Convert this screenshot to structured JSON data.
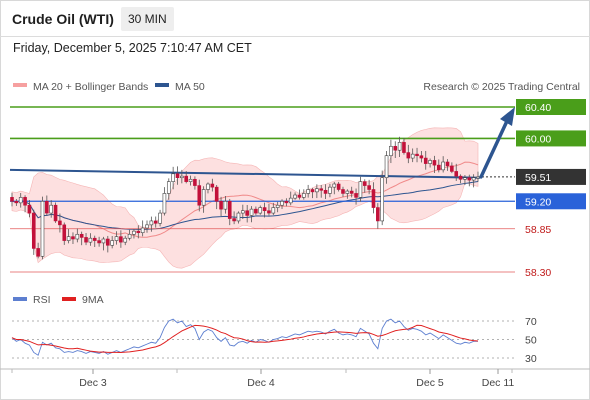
{
  "header": {
    "title": "Crude Oil (WTI)",
    "timeframe": "30 MIN",
    "timestamp": "Friday, December 5, 2025 7:10:47 AM CET"
  },
  "legend": {
    "ma20_bb": "MA 20 + Bollinger Bands",
    "ma50": "MA 50",
    "rsi": "RSI",
    "ma9": "9MA"
  },
  "credit": "Research © 2025 Trading Central",
  "colors": {
    "green_level": "#4a9e1a",
    "blue_level": "#2a62d9",
    "red_level": "#e35a5a",
    "trendline": "#2d5590",
    "current_price": "#333333",
    "bollinger_fill": "#fcd6d6",
    "ma20": "#f08a8a",
    "ma50": "#2d5590",
    "rsi": "#5d7fd0",
    "rsi_ma9": "#e02020",
    "candle_up": "#ffffff",
    "candle_down": "#c2113a"
  },
  "chart_data": {
    "type": "candlestick",
    "instrument": "Crude Oil (WTI)",
    "interval": "30 MIN",
    "price_ylim": [
      58.08,
      60.68
    ],
    "x_ticks": [
      "Dec 3",
      "Dec 4",
      "Dec 5",
      "Dec 11"
    ],
    "grid": false,
    "levels": [
      {
        "label": "60.40",
        "value": 60.4,
        "kind": "resistance",
        "color": "green"
      },
      {
        "label": "60.00",
        "value": 60.0,
        "kind": "resistance",
        "color": "green"
      },
      {
        "label": "59.51",
        "value": 59.51,
        "kind": "current",
        "color": "dark"
      },
      {
        "label": "59.20",
        "value": 59.2,
        "kind": "pivot",
        "color": "blue"
      },
      {
        "label": "58.85",
        "value": 58.85,
        "kind": "support",
        "color": "red"
      },
      {
        "label": "58.30",
        "value": 58.3,
        "kind": "support",
        "color": "red"
      }
    ],
    "trendline": {
      "from": [
        "Dec 2 start",
        59.6
      ],
      "to": [
        "Dec 5 09:00",
        59.5
      ]
    },
    "projection_arrow": {
      "from": 59.51,
      "to": 60.4
    },
    "candles_close": [
      59.2,
      59.18,
      59.25,
      59.15,
      59.05,
      58.6,
      58.5,
      59.2,
      59.05,
      59.15,
      58.95,
      58.9,
      58.7,
      58.75,
      58.72,
      58.78,
      58.74,
      58.68,
      58.73,
      58.7,
      58.67,
      58.72,
      58.64,
      58.7,
      58.75,
      58.68,
      58.73,
      58.78,
      58.82,
      58.8,
      58.86,
      58.9,
      58.95,
      58.92,
      59.05,
      59.3,
      59.45,
      59.55,
      59.5,
      59.52,
      59.45,
      59.48,
      59.4,
      59.15,
      59.35,
      59.42,
      59.38,
      59.2,
      59.1,
      59.2,
      58.98,
      58.95,
      59.05,
      59.08,
      59.02,
      59.1,
      59.05,
      59.12,
      59.08,
      59.05,
      59.12,
      59.15,
      59.2,
      59.18,
      59.24,
      59.28,
      59.25,
      59.3,
      59.35,
      59.32,
      59.36,
      59.34,
      59.3,
      59.38,
      59.42,
      59.35,
      59.3,
      59.33,
      59.3,
      59.25,
      59.45,
      59.4,
      59.35,
      59.12,
      58.95,
      59.5,
      59.78,
      59.9,
      59.85,
      59.95,
      59.82,
      59.75,
      59.8,
      59.78,
      59.75,
      59.68,
      59.72,
      59.66,
      59.6,
      59.7,
      59.65,
      59.58,
      59.52,
      59.48,
      59.5,
      59.47,
      59.5,
      59.51
    ],
    "ma20_series": {
      "start": 59.3,
      "end": 59.62
    },
    "ma50_series": {
      "start": 59.45,
      "end": 59.5
    },
    "rsi": {
      "ylim": [
        20,
        80
      ],
      "ticks": [
        70,
        50,
        30
      ],
      "values": [
        52,
        48,
        50,
        46,
        44,
        36,
        33,
        47,
        44,
        46,
        41,
        40,
        36,
        37,
        36,
        38,
        37,
        35,
        37,
        36,
        35,
        37,
        34,
        36,
        38,
        36,
        38,
        40,
        42,
        41,
        43,
        45,
        47,
        46,
        52,
        63,
        70,
        72,
        68,
        70,
        64,
        66,
        62,
        50,
        58,
        61,
        59,
        52,
        48,
        52,
        44,
        43,
        47,
        48,
        46,
        49,
        47,
        50,
        49,
        47,
        50,
        51,
        53,
        52,
        54,
        56,
        55,
        57,
        59,
        58,
        59,
        58,
        56,
        59,
        61,
        57,
        55,
        56,
        55,
        53,
        62,
        59,
        56,
        46,
        40,
        62,
        70,
        72,
        68,
        70,
        64,
        60,
        62,
        61,
        59,
        55,
        57,
        54,
        51,
        55,
        52,
        49,
        46,
        45,
        47,
        46,
        48,
        48
      ],
      "ma9_start": 45,
      "ma9_end": 49
    }
  }
}
